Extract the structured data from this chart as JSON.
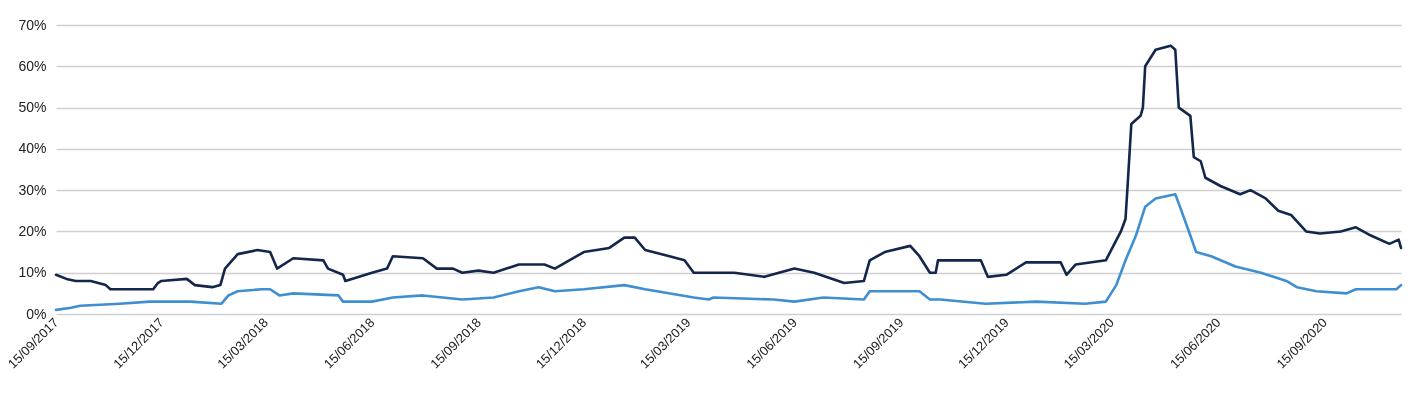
{
  "chart_data": {
    "type": "line",
    "xlim": [
      "2017-09-15",
      "2020-11-20"
    ],
    "xticks": [
      {
        "value": "2017-09-15",
        "label": "15/09/2017"
      },
      {
        "value": "2017-12-15",
        "label": "15/12/2017"
      },
      {
        "value": "2018-03-15",
        "label": "15/03/2018"
      },
      {
        "value": "2018-06-15",
        "label": "15/06/2018"
      },
      {
        "value": "2018-09-15",
        "label": "15/09/2018"
      },
      {
        "value": "2018-12-15",
        "label": "15/12/2018"
      },
      {
        "value": "2019-03-15",
        "label": "15/03/2019"
      },
      {
        "value": "2019-06-15",
        "label": "15/06/2019"
      },
      {
        "value": "2019-09-15",
        "label": "15/09/2019"
      },
      {
        "value": "2019-12-15",
        "label": "15/12/2019"
      },
      {
        "value": "2020-03-15",
        "label": "15/03/2020"
      },
      {
        "value": "2020-06-15",
        "label": "15/06/2020"
      },
      {
        "value": "2020-09-15",
        "label": "15/09/2020"
      }
    ],
    "ylim": [
      0,
      70
    ],
    "yticks": [
      {
        "value": 0,
        "label": "0%"
      },
      {
        "value": 10,
        "label": "10%"
      },
      {
        "value": 20,
        "label": "20%"
      },
      {
        "value": 30,
        "label": "30%"
      },
      {
        "value": 40,
        "label": "40%"
      },
      {
        "value": 50,
        "label": "50%"
      },
      {
        "value": 60,
        "label": "60%"
      },
      {
        "value": 70,
        "label": "70%"
      }
    ],
    "grid": "y",
    "marker": "none",
    "line_style": "solid",
    "series": [
      {
        "color": "#3e8fd1",
        "x": [
          "2017-09-15",
          "2017-09-28",
          "2017-10-06",
          "2017-11-09",
          "2017-12-05",
          "2018-01-09",
          "2018-02-05",
          "2018-02-11",
          "2018-02-19",
          "2018-03-12",
          "2018-03-19",
          "2018-03-27",
          "2018-04-08",
          "2018-05-17",
          "2018-05-21",
          "2018-06-15",
          "2018-07-03",
          "2018-07-29",
          "2018-09-01",
          "2018-09-28",
          "2018-10-20",
          "2018-11-06",
          "2018-11-20",
          "2018-12-15",
          "2019-01-19",
          "2019-02-06",
          "2019-03-20",
          "2019-04-02",
          "2019-04-06",
          "2019-05-28",
          "2019-06-15",
          "2019-07-10",
          "2019-08-14",
          "2019-08-19",
          "2019-10-01",
          "2019-10-10",
          "2019-10-19",
          "2019-11-27",
          "2020-01-10",
          "2020-02-21",
          "2020-03-10",
          "2020-03-19",
          "2020-03-27",
          "2020-04-05",
          "2020-04-13",
          "2020-04-22",
          "2020-05-09",
          "2020-05-13",
          "2020-05-22",
          "2020-05-27",
          "2020-06-09",
          "2020-06-30",
          "2020-07-22",
          "2020-08-13",
          "2020-08-22",
          "2020-09-08",
          "2020-10-04",
          "2020-10-12",
          "2020-11-16",
          "2020-11-20"
        ],
        "values": [
          1,
          1.5,
          2,
          2.5,
          3,
          3,
          2.5,
          4.5,
          5.5,
          6,
          6,
          4.5,
          5,
          4.5,
          3,
          3,
          4,
          4.5,
          3.5,
          4,
          5.5,
          6.5,
          5.5,
          6,
          7,
          6,
          4,
          3.5,
          4,
          3.5,
          3,
          4,
          3.5,
          5.5,
          5.5,
          3.5,
          3.5,
          2.5,
          3,
          2.5,
          3,
          7,
          13,
          19,
          26,
          28,
          29,
          26,
          19,
          15,
          14,
          11.5,
          10,
          8,
          6.5,
          5.5,
          5,
          6,
          6,
          7
        ]
      },
      {
        "color": "#13264b",
        "x": [
          "2017-09-15",
          "2017-09-24",
          "2017-10-02",
          "2017-10-15",
          "2017-10-28",
          "2017-11-01",
          "2017-12-08",
          "2017-12-12",
          "2017-12-15",
          "2018-01-06",
          "2018-01-13",
          "2018-01-28",
          "2018-02-04",
          "2018-02-08",
          "2018-02-19",
          "2018-03-08",
          "2018-03-19",
          "2018-03-25",
          "2018-04-08",
          "2018-05-04",
          "2018-05-08",
          "2018-05-21",
          "2018-05-23",
          "2018-06-15",
          "2018-06-28",
          "2018-07-03",
          "2018-07-29",
          "2018-08-10",
          "2018-08-24",
          "2018-09-01",
          "2018-09-15",
          "2018-09-28",
          "2018-10-20",
          "2018-11-11",
          "2018-11-20",
          "2018-12-15",
          "2019-01-06",
          "2019-01-19",
          "2019-01-28",
          "2019-02-06",
          "2019-02-27",
          "2019-03-12",
          "2019-03-20",
          "2019-03-31",
          "2019-04-24",
          "2019-05-20",
          "2019-06-15",
          "2019-07-02",
          "2019-07-28",
          "2019-08-14",
          "2019-08-19",
          "2019-09-01",
          "2019-09-23",
          "2019-10-01",
          "2019-10-10",
          "2019-10-15",
          "2019-10-17",
          "2019-11-23",
          "2019-11-29",
          "2019-12-15",
          "2020-01-01",
          "2020-01-31",
          "2020-02-05",
          "2020-02-13",
          "2020-03-10",
          "2020-03-23",
          "2020-03-27",
          "2020-03-29",
          "2020-04-01",
          "2020-04-09",
          "2020-04-11",
          "2020-04-13",
          "2020-04-22",
          "2020-05-05",
          "2020-05-09",
          "2020-05-12",
          "2020-05-22",
          "2020-05-25",
          "2020-05-31",
          "2020-06-04",
          "2020-06-17",
          "2020-07-04",
          "2020-07-13",
          "2020-07-26",
          "2020-08-06",
          "2020-08-17",
          "2020-08-30",
          "2020-09-11",
          "2020-09-29",
          "2020-10-12",
          "2020-10-25",
          "2020-11-10",
          "2020-11-18",
          "2020-11-20"
        ],
        "values": [
          9.5,
          8.5,
          8,
          8,
          7,
          6,
          6,
          7.5,
          8,
          8.5,
          7,
          6.5,
          7,
          11,
          14.5,
          15.5,
          15,
          11,
          13.5,
          13,
          11,
          9.5,
          8,
          10,
          11,
          14,
          13.5,
          11,
          11,
          10,
          10.5,
          10,
          12,
          12,
          11,
          15,
          16,
          18.5,
          18.5,
          15.5,
          14,
          13,
          10,
          10,
          10,
          9,
          11,
          10,
          7.5,
          8,
          13,
          15,
          16.5,
          14,
          10,
          10,
          13,
          13,
          9,
          9.5,
          12.5,
          12.5,
          9.5,
          12,
          13,
          20,
          23,
          32,
          46,
          48,
          50,
          60,
          64,
          65,
          64,
          50,
          48,
          38,
          37,
          33,
          31,
          29,
          30,
          28,
          25,
          24,
          20,
          19.5,
          20,
          21,
          19,
          17,
          18,
          16
        ]
      }
    ]
  }
}
